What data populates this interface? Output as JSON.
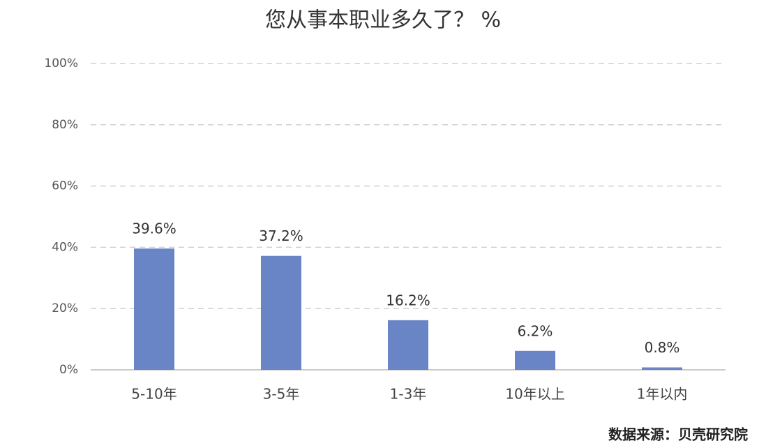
{
  "chart_data": {
    "type": "bar",
    "title": "您从事本职业多久了？ %",
    "categories": [
      "5-10年",
      "3-5年",
      "1-3年",
      "10年以上",
      "1年以内"
    ],
    "values": [
      39.6,
      37.2,
      16.2,
      6.2,
      0.8
    ],
    "value_labels": [
      "39.6%",
      "37.2%",
      "16.2%",
      "6.2%",
      "0.8%"
    ],
    "color": "#6a85c6",
    "ylim": [
      0,
      100
    ],
    "yticks": [
      {
        "value": 0,
        "label": "0%"
      },
      {
        "value": 20,
        "label": "20%"
      },
      {
        "value": 40,
        "label": "40%"
      },
      {
        "value": 60,
        "label": "60%"
      },
      {
        "value": 80,
        "label": "80%"
      },
      {
        "value": 100,
        "label": "100%"
      }
    ],
    "grid": true,
    "source": "数据来源：贝壳研究院"
  }
}
